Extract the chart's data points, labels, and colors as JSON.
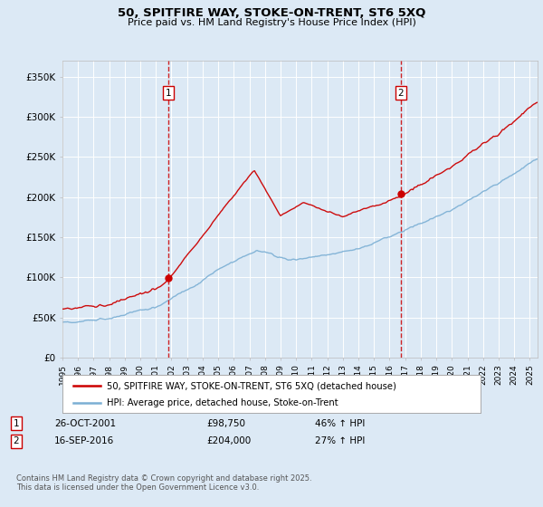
{
  "title": "50, SPITFIRE WAY, STOKE-ON-TRENT, ST6 5XQ",
  "subtitle": "Price paid vs. HM Land Registry's House Price Index (HPI)",
  "background_color": "#dce9f5",
  "plot_bg_color": "#dce9f5",
  "ylim": [
    0,
    370000
  ],
  "yticks": [
    0,
    50000,
    100000,
    150000,
    200000,
    250000,
    300000,
    350000
  ],
  "ytick_labels": [
    "£0",
    "£50K",
    "£100K",
    "£150K",
    "£200K",
    "£250K",
    "£300K",
    "£350K"
  ],
  "year_start": 1995,
  "year_end": 2025,
  "sale1_price": 98750,
  "sale2_price": 204000,
  "sale1_x": 2001.82,
  "sale2_x": 2016.71,
  "sale1_date": "26-OCT-2001",
  "sale2_date": "16-SEP-2016",
  "sale1_hpi": "46% ↑ HPI",
  "sale2_hpi": "27% ↑ HPI",
  "sale1_price_str": "£98,750",
  "sale2_price_str": "£204,000",
  "legend_line1": "50, SPITFIRE WAY, STOKE-ON-TRENT, ST6 5XQ (detached house)",
  "legend_line2": "HPI: Average price, detached house, Stoke-on-Trent",
  "footer": "Contains HM Land Registry data © Crown copyright and database right 2025.\nThis data is licensed under the Open Government Licence v3.0.",
  "red_color": "#cc0000",
  "blue_color": "#7bafd4"
}
